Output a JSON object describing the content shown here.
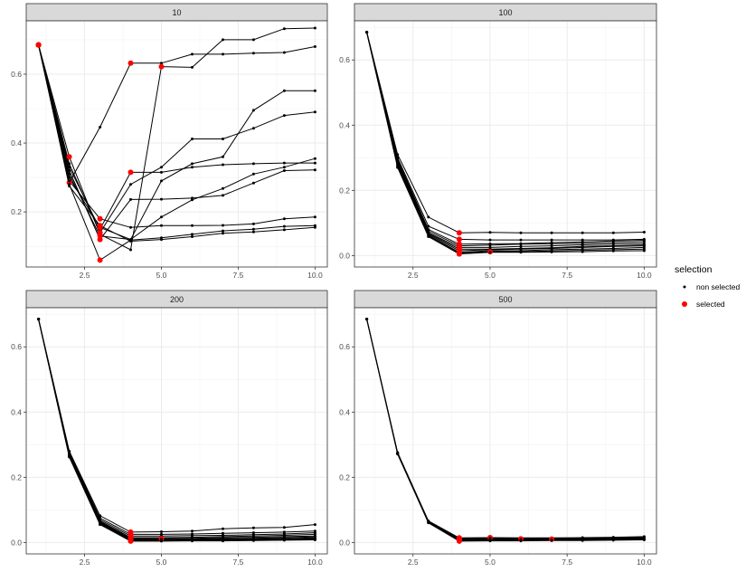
{
  "legend": {
    "title": "selection",
    "items": [
      {
        "label": "non selected",
        "color": "#000000"
      },
      {
        "label": "selected",
        "color": "#ff0000"
      }
    ]
  },
  "chart_data": [
    {
      "type": "line",
      "facet": "10",
      "xlim": [
        0.6,
        10.4
      ],
      "ylim": [
        0.04,
        0.755
      ],
      "xticks": [
        2.5,
        5.0,
        7.5,
        10.0
      ],
      "xtick_labels": [
        "2.5",
        "5.0",
        "7.5",
        "10.0"
      ],
      "yticks": [
        0.2,
        0.4,
        0.6
      ],
      "ytick_labels": [
        "0.2",
        "0.4",
        "0.6"
      ],
      "grid": true,
      "x": [
        1,
        2,
        3,
        4,
        5,
        6,
        7,
        8,
        9,
        10
      ],
      "series": [
        {
          "values": [
            0.685,
            0.285,
            0.446,
            0.632,
            0.632,
            0.658,
            0.658,
            0.661,
            0.663,
            0.68
          ],
          "selected": [
            1,
            2,
            4
          ]
        },
        {
          "values": [
            0.685,
            0.36,
            0.135,
            0.09,
            0.622,
            0.62,
            0.7,
            0.7,
            0.732,
            0.734
          ],
          "selected": [
            1,
            2,
            3,
            5
          ]
        },
        {
          "values": [
            0.685,
            0.34,
            0.14,
            0.28,
            0.33,
            0.412,
            0.412,
            0.443,
            0.48,
            0.49
          ],
          "selected": [
            1,
            3
          ]
        },
        {
          "values": [
            0.685,
            0.33,
            0.15,
            0.315,
            0.315,
            0.33,
            0.337,
            0.34,
            0.342,
            0.342
          ],
          "selected": [
            1,
            4
          ]
        },
        {
          "values": [
            0.685,
            0.32,
            0.12,
            0.236,
            0.237,
            0.24,
            0.248,
            0.284,
            0.32,
            0.322
          ],
          "selected": [
            1,
            3
          ]
        },
        {
          "values": [
            0.685,
            0.31,
            0.13,
            0.12,
            0.29,
            0.34,
            0.36,
            0.495,
            0.552,
            0.552
          ],
          "selected": [
            1,
            3
          ]
        },
        {
          "values": [
            0.685,
            0.3,
            0.155,
            0.12,
            0.185,
            0.235,
            0.268,
            0.31,
            0.33,
            0.355
          ],
          "selected": [
            1,
            3
          ]
        },
        {
          "values": [
            0.685,
            0.29,
            0.18,
            0.155,
            0.16,
            0.16,
            0.161,
            0.165,
            0.18,
            0.185
          ],
          "selected": [
            1,
            3
          ]
        },
        {
          "values": [
            0.685,
            0.28,
            0.06,
            0.118,
            0.125,
            0.135,
            0.145,
            0.15,
            0.158,
            0.16
          ],
          "selected": [
            1,
            3
          ]
        },
        {
          "values": [
            0.685,
            0.275,
            0.16,
            0.115,
            0.12,
            0.128,
            0.138,
            0.142,
            0.148,
            0.155
          ],
          "selected": [
            1,
            3
          ]
        }
      ]
    },
    {
      "type": "line",
      "facet": "100",
      "xlim": [
        0.6,
        10.4
      ],
      "ylim": [
        -0.035,
        0.72
      ],
      "xticks": [
        2.5,
        5.0,
        7.5,
        10.0
      ],
      "xtick_labels": [
        "2.5",
        "5.0",
        "7.5",
        "10.0"
      ],
      "yticks": [
        0.0,
        0.2,
        0.4,
        0.6
      ],
      "ytick_labels": [
        "0.0",
        "0.2",
        "0.4",
        "0.6"
      ],
      "grid": true,
      "x": [
        1,
        2,
        3,
        4,
        5,
        6,
        7,
        8,
        9,
        10
      ],
      "series": [
        {
          "values": [
            0.685,
            0.31,
            0.118,
            0.07,
            0.071,
            0.07,
            0.07,
            0.07,
            0.07,
            0.072
          ],
          "selected": [
            4
          ]
        },
        {
          "values": [
            0.685,
            0.3,
            0.09,
            0.05,
            0.048,
            0.048,
            0.048,
            0.048,
            0.048,
            0.05
          ],
          "selected": [
            4
          ]
        },
        {
          "values": [
            0.685,
            0.295,
            0.08,
            0.035,
            0.036,
            0.037,
            0.04,
            0.042,
            0.045,
            0.047
          ],
          "selected": [
            4
          ]
        },
        {
          "values": [
            0.685,
            0.29,
            0.075,
            0.03,
            0.032,
            0.035,
            0.036,
            0.038,
            0.04,
            0.042
          ],
          "selected": [
            4
          ]
        },
        {
          "values": [
            0.685,
            0.285,
            0.07,
            0.025,
            0.025,
            0.028,
            0.03,
            0.033,
            0.035,
            0.036
          ],
          "selected": [
            4
          ]
        },
        {
          "values": [
            0.685,
            0.28,
            0.068,
            0.02,
            0.02,
            0.022,
            0.024,
            0.028,
            0.03,
            0.032
          ],
          "selected": [
            4
          ]
        },
        {
          "values": [
            0.685,
            0.278,
            0.065,
            0.015,
            0.018,
            0.02,
            0.022,
            0.025,
            0.028,
            0.03
          ],
          "selected": [
            4
          ]
        },
        {
          "values": [
            0.685,
            0.275,
            0.062,
            0.01,
            0.015,
            0.015,
            0.018,
            0.02,
            0.022,
            0.025
          ],
          "selected": [
            4
          ]
        },
        {
          "values": [
            0.685,
            0.272,
            0.06,
            0.008,
            0.012,
            0.012,
            0.014,
            0.016,
            0.018,
            0.02
          ],
          "selected": [
            4,
            5
          ]
        },
        {
          "values": [
            0.685,
            0.27,
            0.058,
            0.005,
            0.01,
            0.01,
            0.011,
            0.012,
            0.014,
            0.015
          ],
          "selected": [
            4
          ]
        }
      ]
    },
    {
      "type": "line",
      "facet": "200",
      "xlim": [
        0.6,
        10.4
      ],
      "ylim": [
        -0.035,
        0.72
      ],
      "xticks": [
        2.5,
        5.0,
        7.5,
        10.0
      ],
      "xtick_labels": [
        "2.5",
        "5.0",
        "7.5",
        "10.0"
      ],
      "yticks": [
        0.0,
        0.2,
        0.4,
        0.6
      ],
      "ytick_labels": [
        "0.0",
        "0.2",
        "0.4",
        "0.6"
      ],
      "grid": true,
      "x": [
        1,
        2,
        3,
        4,
        5,
        6,
        7,
        8,
        9,
        10
      ],
      "series": [
        {
          "values": [
            0.685,
            0.28,
            0.082,
            0.032,
            0.033,
            0.035,
            0.042,
            0.045,
            0.046,
            0.055
          ],
          "selected": [
            4
          ]
        },
        {
          "values": [
            0.685,
            0.278,
            0.075,
            0.025,
            0.025,
            0.026,
            0.028,
            0.03,
            0.032,
            0.035
          ],
          "selected": [
            4
          ]
        },
        {
          "values": [
            0.685,
            0.276,
            0.07,
            0.02,
            0.02,
            0.021,
            0.022,
            0.024,
            0.026,
            0.03
          ],
          "selected": [
            4
          ]
        },
        {
          "values": [
            0.685,
            0.274,
            0.066,
            0.015,
            0.015,
            0.016,
            0.018,
            0.02,
            0.022,
            0.025
          ],
          "selected": [
            4
          ]
        },
        {
          "values": [
            0.685,
            0.272,
            0.064,
            0.012,
            0.012,
            0.013,
            0.015,
            0.016,
            0.018,
            0.02
          ],
          "selected": [
            4,
            5
          ]
        },
        {
          "values": [
            0.685,
            0.27,
            0.062,
            0.01,
            0.01,
            0.011,
            0.012,
            0.013,
            0.015,
            0.017
          ],
          "selected": [
            4
          ]
        },
        {
          "values": [
            0.685,
            0.268,
            0.06,
            0.008,
            0.008,
            0.009,
            0.01,
            0.011,
            0.012,
            0.014
          ],
          "selected": [
            4
          ]
        },
        {
          "values": [
            0.685,
            0.266,
            0.058,
            0.006,
            0.006,
            0.007,
            0.008,
            0.009,
            0.01,
            0.012
          ],
          "selected": [
            4
          ]
        },
        {
          "values": [
            0.685,
            0.264,
            0.056,
            0.005,
            0.005,
            0.006,
            0.006,
            0.007,
            0.008,
            0.01
          ],
          "selected": [
            4
          ]
        },
        {
          "values": [
            0.685,
            0.262,
            0.055,
            0.004,
            0.004,
            0.005,
            0.005,
            0.006,
            0.007,
            0.008
          ],
          "selected": [
            4
          ]
        }
      ]
    },
    {
      "type": "line",
      "facet": "500",
      "xlim": [
        0.6,
        10.4
      ],
      "ylim": [
        -0.035,
        0.72
      ],
      "xticks": [
        2.5,
        5.0,
        7.5,
        10.0
      ],
      "xtick_labels": [
        "2.5",
        "5.0",
        "7.5",
        "10.0"
      ],
      "yticks": [
        0.0,
        0.2,
        0.4,
        0.6
      ],
      "ytick_labels": [
        "0.0",
        "0.2",
        "0.4",
        "0.6"
      ],
      "grid": true,
      "x": [
        1,
        2,
        3,
        4,
        5,
        6,
        7,
        8,
        9,
        10
      ],
      "series": [
        {
          "values": [
            0.685,
            0.276,
            0.066,
            0.014,
            0.015,
            0.014,
            0.014,
            0.015,
            0.016,
            0.018
          ],
          "selected": [
            4,
            5
          ]
        },
        {
          "values": [
            0.685,
            0.275,
            0.064,
            0.012,
            0.013,
            0.012,
            0.013,
            0.013,
            0.014,
            0.015
          ],
          "selected": [
            4
          ]
        },
        {
          "values": [
            0.685,
            0.274,
            0.063,
            0.01,
            0.011,
            0.011,
            0.011,
            0.012,
            0.012,
            0.013
          ],
          "selected": [
            4,
            6
          ]
        },
        {
          "values": [
            0.685,
            0.273,
            0.062,
            0.008,
            0.009,
            0.009,
            0.01,
            0.01,
            0.011,
            0.012
          ],
          "selected": [
            4,
            7
          ]
        },
        {
          "values": [
            0.685,
            0.272,
            0.061,
            0.006,
            0.007,
            0.007,
            0.008,
            0.008,
            0.009,
            0.01
          ],
          "selected": [
            4
          ]
        },
        {
          "values": [
            0.685,
            0.271,
            0.06,
            0.004,
            0.005,
            0.005,
            0.006,
            0.006,
            0.007,
            0.008
          ],
          "selected": [
            4
          ]
        }
      ]
    }
  ]
}
